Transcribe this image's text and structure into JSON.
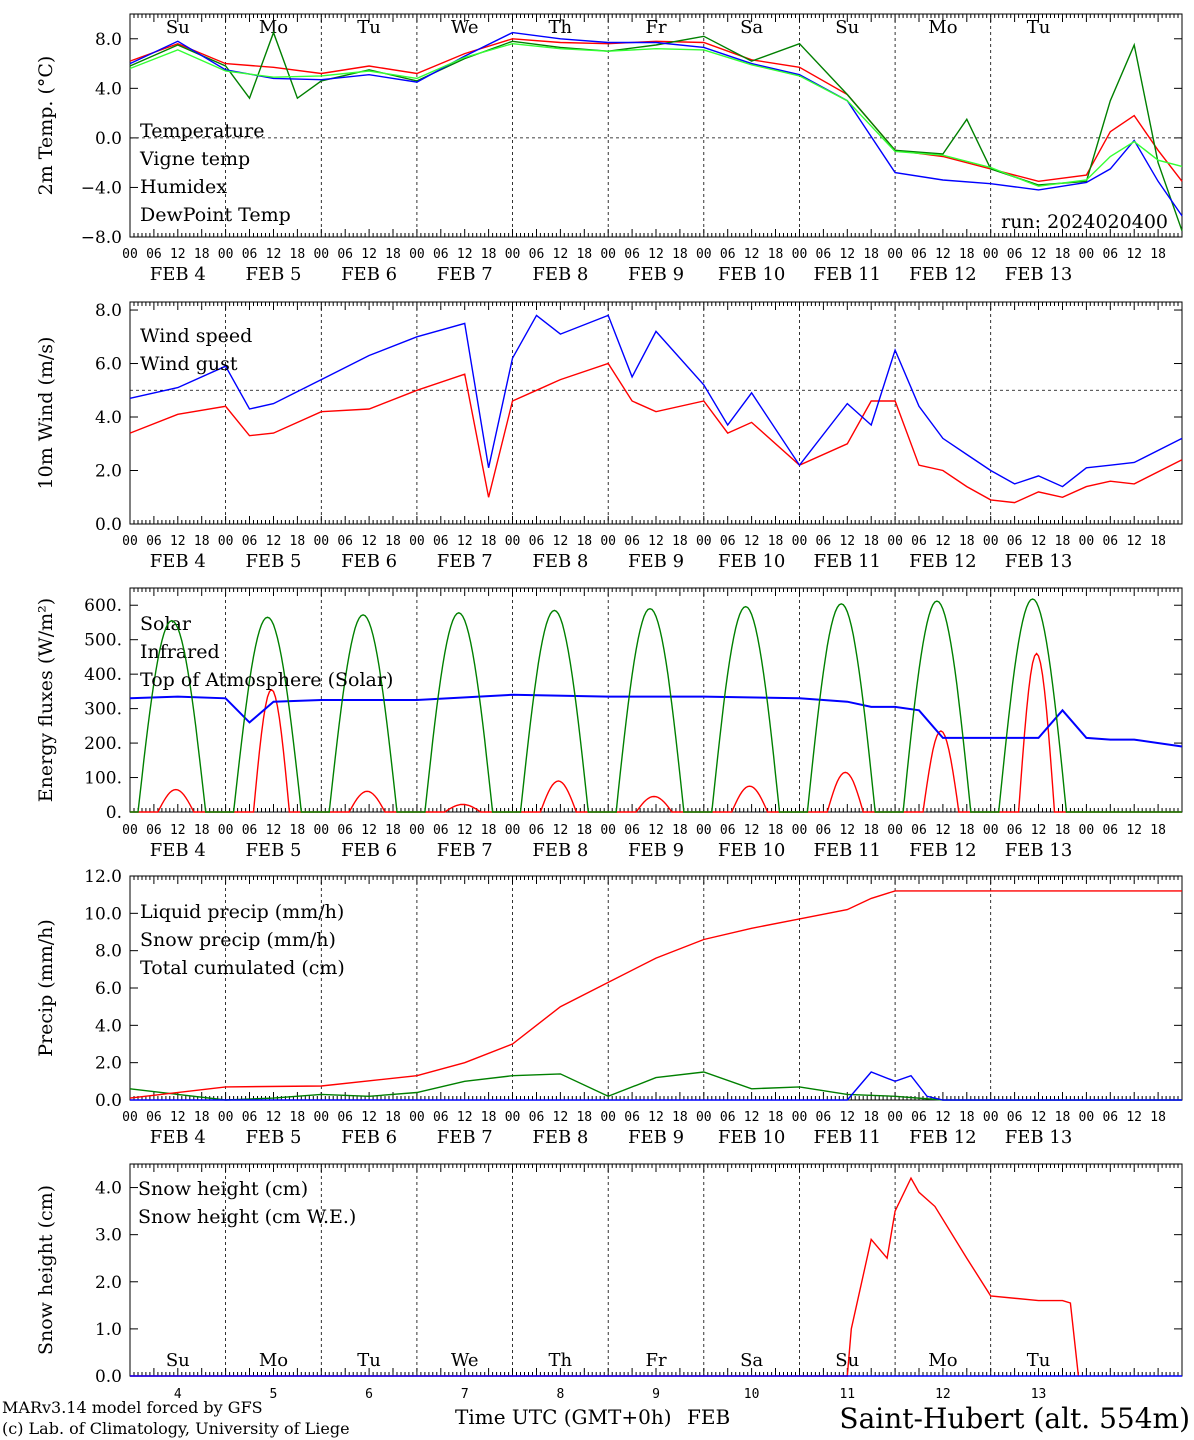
{
  "colors": {
    "red": "#ff0000",
    "green": "#008000",
    "blue": "#0000ff",
    "lightgreen": "#33ff33",
    "station": "#2a2aff"
  },
  "hour_labels": [
    "00",
    "06",
    "12",
    "18"
  ],
  "day_names": [
    "Su",
    "Mo",
    "Tu",
    "We",
    "Th",
    "Fr",
    "Sa",
    "Su",
    "Mo",
    "Tu"
  ],
  "weekend_flags": [
    true,
    false,
    false,
    false,
    false,
    false,
    true,
    true,
    false,
    false
  ],
  "date_labels": [
    "FEB  4",
    "FEB  5",
    "FEB  6",
    "FEB  7",
    "FEB  8",
    "FEB  9",
    "FEB 10",
    "FEB 11",
    "FEB 12",
    "FEB 13"
  ],
  "bottom_day_numbers": [
    "4",
    "5",
    "6",
    "7",
    "8",
    "9",
    "10",
    "11",
    "12",
    "13"
  ],
  "footer": {
    "model": "MARv3.14 model forced by GFS",
    "copyright": "(c) Lab. of Climatology, University of Liege",
    "xlabel": "Time UTC (GMT+0h)",
    "month": "FEB",
    "station": "Saint-Hubert (alt. 554m)"
  },
  "chart_data": [
    {
      "type": "line",
      "ylabel": "2m Temp. (°C)",
      "ylim": [
        -8,
        10
      ],
      "yticks": [
        "8.0",
        "4.0",
        "0.0",
        "−4.0",
        "−8.0"
      ],
      "ytick_values": [
        8,
        4,
        0,
        -4,
        -8
      ],
      "hline": 0,
      "annotation": "run: 2024020400",
      "x_unit": "hours since FEB 4 00 UTC",
      "series": [
        {
          "name": "Temperature",
          "color": "red",
          "x": [
            0,
            12,
            24,
            36,
            48,
            60,
            72,
            84,
            96,
            108,
            120,
            132,
            144,
            156,
            168,
            180,
            192,
            204,
            216,
            228,
            240,
            246,
            252,
            258,
            264
          ],
          "values": [
            6.2,
            7.6,
            6.0,
            5.7,
            5.2,
            5.8,
            5.2,
            6.8,
            8.0,
            7.7,
            7.6,
            7.8,
            7.7,
            6.3,
            5.7,
            3.5,
            -1.0,
            -1.5,
            -2.5,
            -3.5,
            -3.0,
            0.5,
            1.8,
            -1.0,
            -3.5
          ]
        },
        {
          "name": "Vigne temp",
          "color": "green",
          "x": [
            0,
            12,
            24,
            30,
            36,
            42,
            48,
            60,
            72,
            84,
            96,
            108,
            120,
            132,
            144,
            156,
            168,
            180,
            192,
            204,
            210,
            216,
            228,
            240,
            246,
            252,
            258,
            264
          ],
          "values": [
            5.8,
            7.5,
            5.8,
            3.2,
            8.5,
            3.2,
            4.6,
            5.5,
            4.6,
            6.4,
            7.8,
            7.3,
            7.0,
            7.5,
            8.2,
            6.2,
            7.6,
            3.5,
            -1.0,
            -1.3,
            1.5,
            -2.5,
            -3.8,
            -3.5,
            3.0,
            7.5,
            -2.0,
            -7.5
          ]
        },
        {
          "name": "Humidex",
          "color": "blue",
          "x": [
            0,
            12,
            24,
            36,
            48,
            60,
            72,
            84,
            96,
            108,
            120,
            132,
            144,
            156,
            168,
            180,
            192,
            204,
            216,
            228,
            240,
            246,
            252,
            258,
            264
          ],
          "values": [
            6.0,
            7.8,
            5.5,
            4.8,
            4.7,
            5.1,
            4.5,
            6.6,
            8.5,
            8.0,
            7.7,
            7.7,
            7.3,
            6.0,
            5.1,
            3.0,
            -2.8,
            -3.4,
            -3.7,
            -4.2,
            -3.6,
            -2.5,
            -0.2,
            -3.5,
            -6.3
          ]
        },
        {
          "name": "DewPoint Temp",
          "color": "lightgreen",
          "x": [
            0,
            12,
            24,
            36,
            48,
            60,
            72,
            84,
            96,
            108,
            120,
            132,
            144,
            156,
            168,
            180,
            192,
            204,
            216,
            228,
            240,
            246,
            252,
            258,
            264
          ],
          "values": [
            5.6,
            7.1,
            5.4,
            4.9,
            5.0,
            5.4,
            4.8,
            6.5,
            7.6,
            7.2,
            7.0,
            7.2,
            7.1,
            5.9,
            5.0,
            3.0,
            -1.1,
            -1.4,
            -2.4,
            -3.9,
            -3.4,
            -1.5,
            -0.3,
            -1.8,
            -2.3
          ]
        }
      ]
    },
    {
      "type": "line",
      "ylabel": "10m Wind (m/s)",
      "ylim": [
        0,
        8.3
      ],
      "yticks": [
        "8.0",
        "6.0",
        "4.0",
        "2.0",
        "0.0"
      ],
      "ytick_values": [
        8,
        6,
        4,
        2,
        0
      ],
      "hline": 5,
      "x_unit": "hours since FEB 4 00 UTC",
      "series": [
        {
          "name": "Wind speed",
          "color": "red",
          "x": [
            0,
            12,
            24,
            30,
            36,
            48,
            60,
            72,
            84,
            90,
            96,
            102,
            108,
            120,
            126,
            132,
            144,
            150,
            156,
            168,
            180,
            186,
            192,
            198,
            204,
            210,
            216,
            222,
            228,
            234,
            240,
            246,
            252,
            264
          ],
          "values": [
            3.4,
            4.1,
            4.4,
            3.3,
            3.4,
            4.2,
            4.3,
            5.0,
            5.6,
            1.0,
            4.6,
            5.0,
            5.4,
            6.0,
            4.6,
            4.2,
            4.6,
            3.4,
            3.8,
            2.2,
            3.0,
            4.6,
            4.6,
            2.2,
            2.0,
            1.4,
            0.9,
            0.8,
            1.2,
            1.0,
            1.4,
            1.6,
            1.5,
            2.4
          ]
        },
        {
          "name": "Wind gust",
          "color": "blue",
          "x": [
            0,
            12,
            24,
            30,
            36,
            48,
            60,
            72,
            84,
            90,
            96,
            102,
            108,
            120,
            126,
            132,
            144,
            150,
            156,
            168,
            180,
            186,
            192,
            198,
            204,
            210,
            216,
            222,
            228,
            234,
            240,
            246,
            252,
            264
          ],
          "values": [
            4.7,
            5.1,
            5.9,
            4.3,
            4.5,
            5.4,
            6.3,
            7.0,
            7.5,
            2.1,
            6.2,
            7.8,
            7.1,
            7.8,
            5.5,
            7.2,
            5.2,
            3.7,
            4.9,
            2.2,
            4.5,
            3.7,
            6.5,
            4.4,
            3.2,
            2.6,
            2.0,
            1.5,
            1.8,
            1.4,
            2.1,
            2.2,
            2.3,
            3.2
          ]
        }
      ]
    },
    {
      "type": "line",
      "ylabel": "Energy fluxes (W/m²)",
      "ylim": [
        0,
        650
      ],
      "yticks": [
        "600.",
        "500.",
        "400.",
        "300.",
        "200.",
        "100.",
        "0."
      ],
      "ytick_values": [
        600,
        500,
        400,
        300,
        200,
        100,
        0
      ],
      "x_unit": "hours since FEB 4 00 UTC",
      "series": [
        {
          "name": "Solar",
          "color": "red",
          "peaks": [
            65,
            355,
            60,
            22,
            90,
            45,
            75,
            115,
            235,
            460
          ]
        },
        {
          "name": "Infrared",
          "color": "blue",
          "x": [
            0,
            12,
            24,
            30,
            36,
            48,
            72,
            96,
            120,
            144,
            168,
            180,
            186,
            192,
            198,
            204,
            210,
            216,
            228,
            234,
            240,
            246,
            252,
            264
          ],
          "values": [
            330,
            335,
            330,
            260,
            320,
            325,
            325,
            340,
            335,
            335,
            330,
            320,
            305,
            305,
            295,
            215,
            215,
            215,
            215,
            295,
            215,
            210,
            210,
            190
          ]
        },
        {
          "name": "Top of Atmosphere (Solar)",
          "color": "green",
          "peaks": [
            555,
            565,
            572,
            578,
            585,
            590,
            596,
            604,
            612,
            618
          ]
        }
      ]
    },
    {
      "type": "line",
      "ylabel": "Precip (mm/h)",
      "ylim": [
        0,
        12
      ],
      "yticks": [
        "12.0",
        "10.0",
        "8.0",
        "6.0",
        "4.0",
        "2.0",
        "0.0"
      ],
      "ytick_values": [
        12,
        10,
        8,
        6,
        4,
        2,
        0
      ],
      "x_unit": "hours since FEB 4 00 UTC",
      "series": [
        {
          "name": "Liquid precip (mm/h)",
          "color": "green",
          "x": [
            0,
            12,
            24,
            36,
            48,
            60,
            72,
            84,
            96,
            108,
            120,
            132,
            144,
            156,
            168,
            180,
            192,
            204,
            216,
            264
          ],
          "values": [
            0.6,
            0.3,
            0.0,
            0.1,
            0.3,
            0.2,
            0.4,
            1.0,
            1.3,
            1.4,
            0.2,
            1.2,
            1.5,
            0.6,
            0.7,
            0.3,
            0.2,
            0.0,
            0.0,
            0.0
          ]
        },
        {
          "name": "Snow precip (mm/h)",
          "color": "blue",
          "x": [
            0,
            180,
            186,
            192,
            196,
            200,
            204,
            264
          ],
          "values": [
            0,
            0,
            1.5,
            1.0,
            1.3,
            0.2,
            0,
            0
          ]
        },
        {
          "name": "Total cumulated (cm)",
          "color": "red",
          "x": [
            0,
            24,
            48,
            72,
            84,
            96,
            108,
            120,
            132,
            144,
            156,
            168,
            180,
            186,
            192,
            264
          ],
          "values": [
            0.1,
            0.7,
            0.75,
            1.3,
            2.0,
            3.0,
            5.0,
            6.3,
            7.6,
            8.6,
            9.2,
            9.7,
            10.2,
            10.8,
            11.2,
            11.2
          ]
        }
      ]
    },
    {
      "type": "line",
      "ylabel": "Snow height (cm)",
      "ylim": [
        0,
        4.5
      ],
      "yticks": [
        "4.0",
        "3.0",
        "2.0",
        "1.0",
        "0.0"
      ],
      "ytick_values": [
        4,
        3,
        2,
        1,
        0
      ],
      "x_unit": "hours since FEB 4 00 UTC",
      "series": [
        {
          "name": "Snow height (cm)",
          "color": "red",
          "x": [
            0,
            180,
            181,
            186,
            190,
            192,
            196,
            198,
            202,
            210,
            216,
            228,
            234,
            236,
            238
          ],
          "values": [
            0,
            0,
            1.0,
            2.9,
            2.5,
            3.5,
            4.2,
            3.9,
            3.6,
            2.5,
            1.7,
            1.6,
            1.6,
            1.55,
            0
          ]
        },
        {
          "name": "Snow height (cm W.E.)",
          "color": "blue",
          "x": [
            0,
            264
          ],
          "values": [
            0,
            0
          ]
        }
      ]
    }
  ]
}
